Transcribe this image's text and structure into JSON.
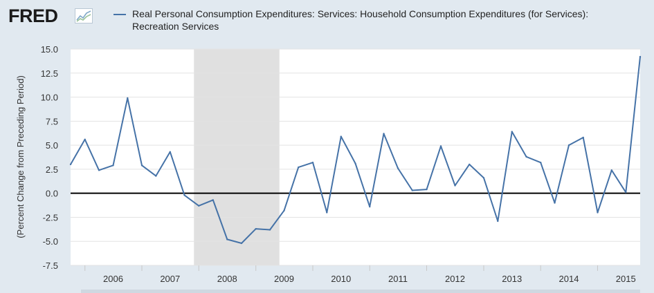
{
  "header": {
    "logo_text": "FRED",
    "logo_icon": "line-chart-icon",
    "series_label": "Real Personal Consumption Expenditures: Services: Household Consumption Expenditures (for Services): Recreation Services"
  },
  "colors": {
    "series": "#4572a7",
    "recession": "#e0e0e0",
    "background": "#e1e9f0",
    "plot": "#ffffff",
    "zero_line": "#000000"
  },
  "chart_data": {
    "type": "line",
    "ylabel": "(Percent Change from Preceding Period)",
    "xlabel": "",
    "ylim": [
      -7.5,
      15.0
    ],
    "y_ticks": [
      "15.0",
      "12.5",
      "10.0",
      "7.5",
      "5.0",
      "2.5",
      "0.0",
      "-2.5",
      "-5.0",
      "-7.5"
    ],
    "x_ticks": [
      "2006",
      "2007",
      "2008",
      "2009",
      "2010",
      "2011",
      "2012",
      "2013",
      "2014",
      "2015"
    ],
    "x_range": [
      "2005-10-01",
      "2015-10-01"
    ],
    "grid": true,
    "zero_line": true,
    "recession_shading": [
      {
        "start": "2007-12-01",
        "end": "2009-06-01"
      }
    ],
    "series": [
      {
        "name": "Real Personal Consumption Expenditures: Services: Household Consumption Expenditures (for Services): Recreation Services",
        "x": [
          "2005-10-01",
          "2006-01-01",
          "2006-04-01",
          "2006-07-01",
          "2006-10-01",
          "2007-01-01",
          "2007-04-01",
          "2007-07-01",
          "2007-10-01",
          "2008-01-01",
          "2008-04-01",
          "2008-07-01",
          "2008-10-01",
          "2009-01-01",
          "2009-04-01",
          "2009-07-01",
          "2009-10-01",
          "2010-01-01",
          "2010-04-01",
          "2010-07-01",
          "2010-10-01",
          "2011-01-01",
          "2011-04-01",
          "2011-07-01",
          "2011-10-01",
          "2012-01-01",
          "2012-04-01",
          "2012-07-01",
          "2012-10-01",
          "2013-01-01",
          "2013-04-01",
          "2013-07-01",
          "2013-10-01",
          "2014-01-01",
          "2014-04-01",
          "2014-07-01",
          "2014-10-01",
          "2015-01-01",
          "2015-04-01",
          "2015-07-01",
          "2015-10-01"
        ],
        "values": [
          3.0,
          5.6,
          2.4,
          2.9,
          9.9,
          2.9,
          1.8,
          4.3,
          -0.2,
          -1.3,
          -0.7,
          -4.8,
          -5.2,
          -3.7,
          -3.8,
          -1.8,
          2.7,
          3.2,
          -2.0,
          5.9,
          3.1,
          -1.4,
          6.2,
          2.6,
          0.3,
          0.4,
          4.9,
          0.8,
          3.0,
          1.6,
          -2.9,
          6.4,
          3.8,
          3.2,
          -1.0,
          5.0,
          5.8,
          -2.0,
          2.4,
          0.1,
          14.2
        ]
      }
    ]
  }
}
